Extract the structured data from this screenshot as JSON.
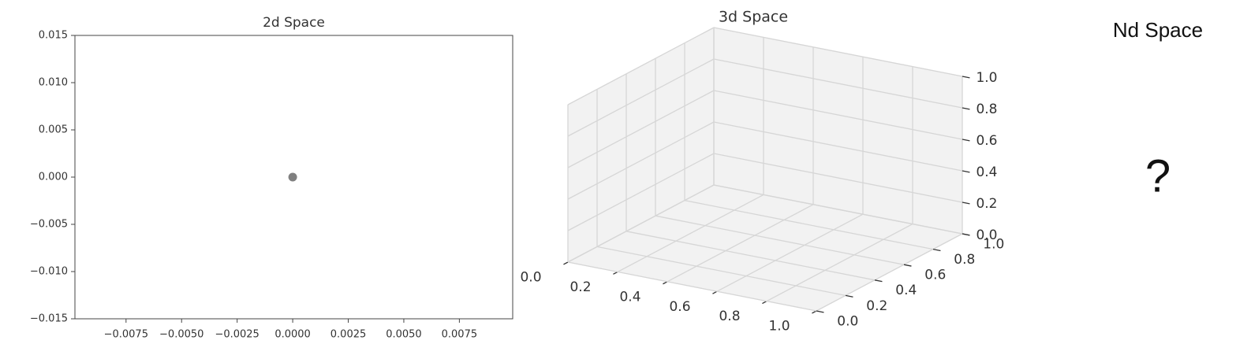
{
  "chart_data": [
    {
      "type": "scatter",
      "title": "2d Space",
      "series": [
        {
          "x": [
            0
          ],
          "values": [
            0
          ],
          "color": "#808080"
        }
      ],
      "xlim": [
        -0.0098,
        0.0099
      ],
      "xticks": [
        {
          "value": -0.0075,
          "label": "−0.0075"
        },
        {
          "value": -0.005,
          "label": "−0.0050"
        },
        {
          "value": -0.0025,
          "label": "−0.0025"
        },
        {
          "value": 0,
          "label": "0.0000"
        },
        0.0025,
        {
          "value": 0.005,
          "label": "0.0050"
        },
        0.0075
      ],
      "ylim": [
        -0.015,
        0.015
      ],
      "yticks": [
        {
          "value": -0.015,
          "label": "−0.015"
        },
        {
          "value": -0.01,
          "label": "−0.010"
        },
        {
          "value": -0.005,
          "label": "−0.005"
        },
        {
          "value": 0,
          "label": "0.000"
        },
        0.005,
        {
          "value": 0.01,
          "label": "0.010"
        },
        0.015
      ]
    },
    {
      "type": "scatter3d",
      "title": "3d Space",
      "xlim": [
        0,
        1
      ],
      "ylim": [
        0,
        1
      ],
      "zlim": [
        0,
        1
      ],
      "xticks": [
        {
          "value": 0,
          "label": "0.0"
        },
        0.2,
        0.4,
        0.6,
        0.8,
        {
          "value": 1,
          "label": "1.0"
        }
      ],
      "yticks": [
        {
          "value": 0,
          "label": "0.0"
        },
        0.2,
        0.4,
        0.6,
        0.8,
        {
          "value": 1,
          "label": "1.0"
        }
      ],
      "zticks": [
        {
          "value": 0,
          "label": "0.0"
        },
        0.2,
        0.4,
        0.6,
        0.8,
        {
          "value": 1,
          "label": "1.0"
        }
      ],
      "grid": true
    }
  ],
  "nd_panel": {
    "title": "Nd Space",
    "symbol": "?"
  }
}
